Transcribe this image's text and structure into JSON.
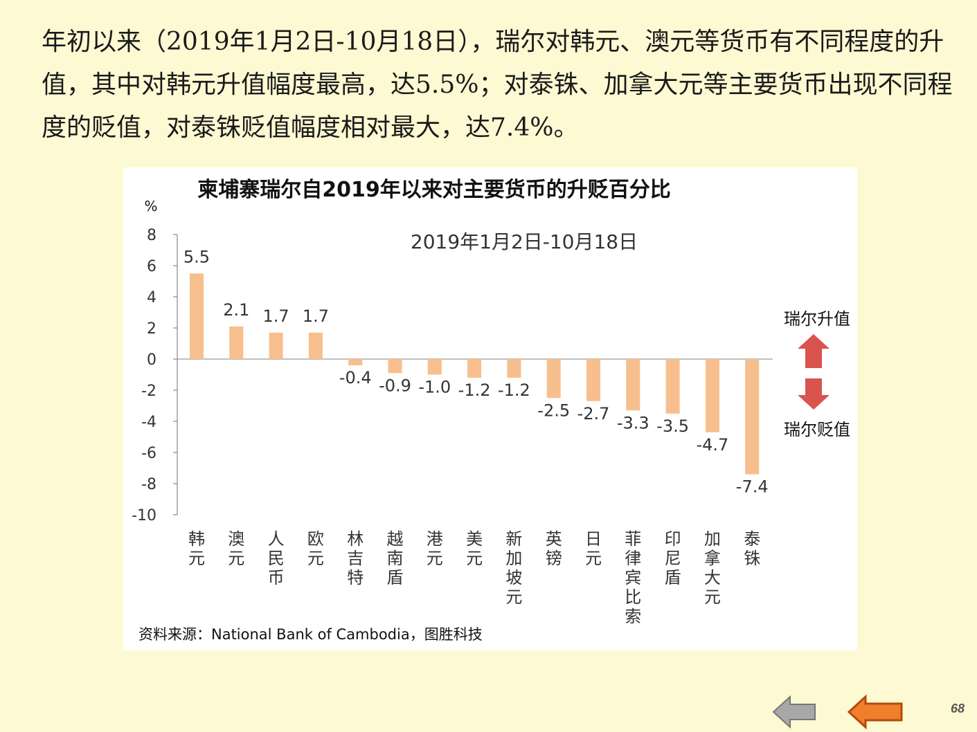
{
  "intro": {
    "text": "年初以来（2019年1月2日-10月18日），瑞尔对韩元、澳元等货币有不同程度的升值，其中对韩元升值幅度最高，达5.5%；对泰铢、加拿大元等主要货币出现不同程度的贬值，对泰铢贬值幅度相对最大，达7.4%。"
  },
  "chart_data": {
    "type": "bar",
    "title": "柬埔寨瑞尔自2019年以来对主要货币的升贬百分比",
    "subtitle": "2019年1月2日-10月18日",
    "ylabel": "%",
    "ylim": [
      -10,
      8
    ],
    "yticks": [
      8,
      6,
      4,
      2,
      0,
      -2,
      -4,
      -6,
      -8,
      -10
    ],
    "categories": [
      "韩元",
      "澳元",
      "人民币",
      "欧元",
      "林吉特",
      "越南盾",
      "港元",
      "美元",
      "新加坡元",
      "英镑",
      "日元",
      "菲律宾比索",
      "印尼盾",
      "加拿大元",
      "泰铢"
    ],
    "values": [
      5.5,
      2.1,
      1.7,
      1.7,
      -0.4,
      -0.9,
      -1.0,
      -1.2,
      -1.2,
      -2.5,
      -2.7,
      -3.3,
      -3.5,
      -4.7,
      -7.4
    ],
    "value_labels": [
      "5.5",
      "2.1",
      "1.7",
      "1.7",
      "-0.4",
      "-0.9",
      "-1.0",
      "-1.2",
      "-1.2",
      "-2.5",
      "-2.7",
      "-3.3",
      "-3.5",
      "-4.7",
      "-7.4"
    ],
    "bar_color": "#f7bf8e",
    "annotations": {
      "up": "瑞尔升值",
      "down": "瑞尔贬值",
      "arrow_color": "#d9534f"
    },
    "source": "资料来源：National Bank of Cambodia，图胜科技"
  },
  "footer": {
    "page_number": "68",
    "back_button_color": "#a8a8a8",
    "prev_button_color": "#f07f2c"
  }
}
